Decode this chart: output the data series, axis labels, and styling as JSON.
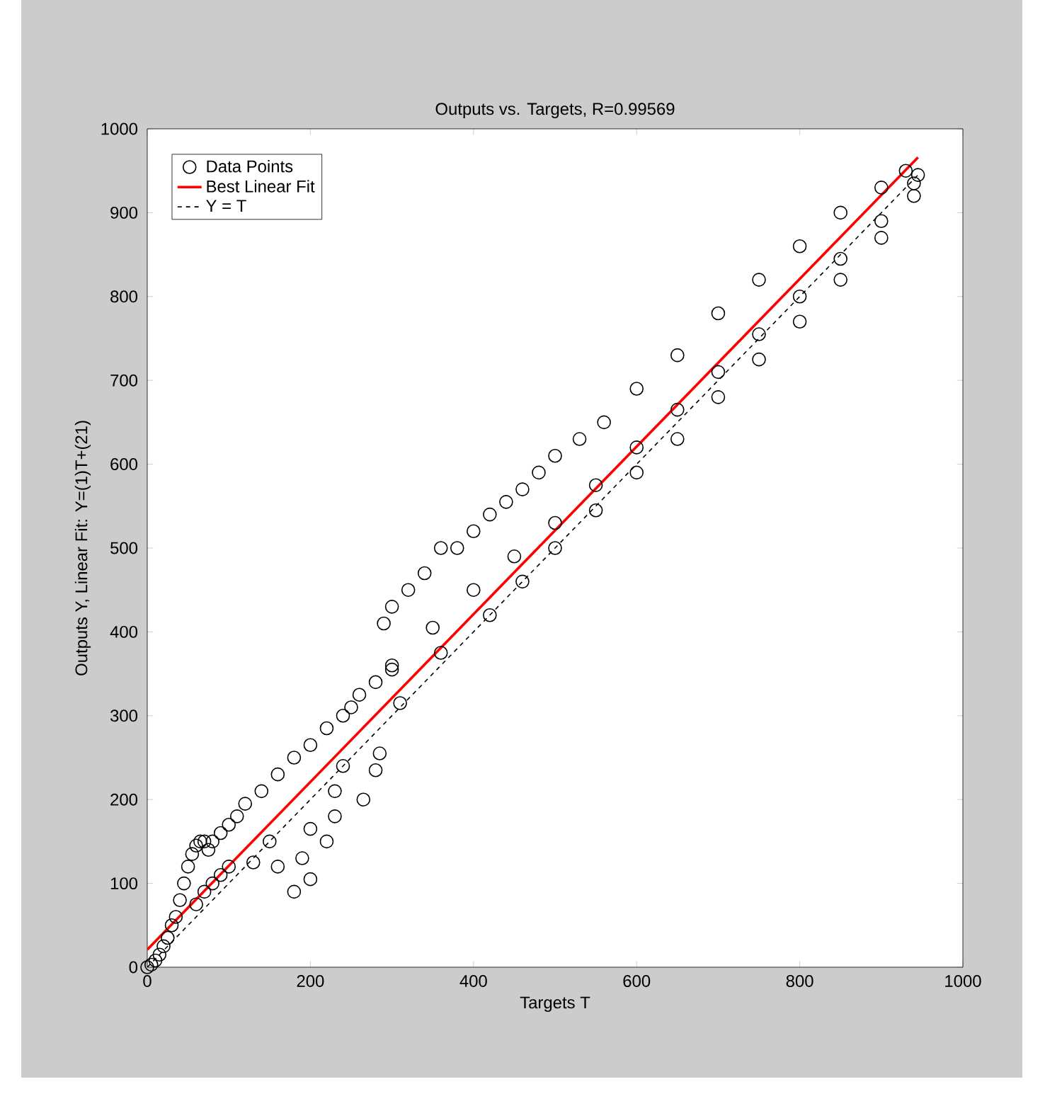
{
  "chart_data": {
    "type": "scatter",
    "title": "Outputs vs. Targets, R=0.99569",
    "xlabel": "Targets T",
    "ylabel": "Outputs Y,  Linear Fit: Y=(1)T+(21)",
    "xlim": [
      0,
      1000
    ],
    "ylim": [
      0,
      1000
    ],
    "xticks": [
      0,
      200,
      400,
      600,
      800,
      1000
    ],
    "yticks": [
      0,
      100,
      200,
      300,
      400,
      500,
      600,
      700,
      800,
      900,
      1000
    ],
    "grid": false,
    "legend": "top left",
    "series": [
      {
        "name": "Data Points",
        "marker": "circle",
        "color": "#000000",
        "x": [
          0,
          5,
          10,
          15,
          20,
          25,
          30,
          35,
          40,
          45,
          50,
          55,
          60,
          65,
          70,
          75,
          80,
          90,
          100,
          110,
          120,
          140,
          160,
          180,
          200,
          220,
          240,
          260,
          280,
          300,
          60,
          70,
          80,
          90,
          100,
          130,
          150,
          160,
          180,
          190,
          200,
          200,
          220,
          230,
          230,
          240,
          265,
          280,
          285,
          290,
          300,
          320,
          340,
          360,
          380,
          400,
          420,
          440,
          460,
          480,
          500,
          530,
          560,
          600,
          650,
          700,
          750,
          800,
          850,
          900,
          930,
          945,
          250,
          300,
          350,
          400,
          450,
          500,
          550,
          600,
          650,
          700,
          750,
          800,
          850,
          900,
          940,
          310,
          360,
          420,
          460,
          500,
          550,
          600,
          650,
          700,
          750,
          800,
          850,
          900,
          940
        ],
        "values": [
          0,
          3,
          8,
          15,
          25,
          35,
          50,
          60,
          80,
          100,
          120,
          135,
          145,
          150,
          150,
          140,
          150,
          160,
          170,
          180,
          195,
          210,
          230,
          250,
          265,
          285,
          300,
          325,
          340,
          360,
          75,
          90,
          100,
          110,
          120,
          125,
          150,
          120,
          90,
          130,
          105,
          165,
          150,
          180,
          210,
          240,
          200,
          235,
          255,
          410,
          430,
          450,
          470,
          500,
          500,
          520,
          540,
          555,
          570,
          590,
          610,
          630,
          650,
          690,
          730,
          780,
          820,
          860,
          900,
          930,
          950,
          945,
          310,
          355,
          405,
          450,
          490,
          530,
          575,
          620,
          665,
          710,
          755,
          800,
          845,
          890,
          935,
          315,
          375,
          420,
          460,
          500,
          545,
          590,
          630,
          680,
          725,
          770,
          820,
          870,
          920
        ]
      },
      {
        "name": "Best Linear Fit",
        "type": "line",
        "line_style": "solid",
        "color": "#ff0000",
        "x": [
          0,
          945
        ],
        "values": [
          21,
          966
        ]
      },
      {
        "name": "Y = T",
        "type": "line",
        "line_style": "dashed",
        "color": "#000000",
        "x": [
          0,
          945
        ],
        "values": [
          0,
          945
        ]
      }
    ]
  }
}
